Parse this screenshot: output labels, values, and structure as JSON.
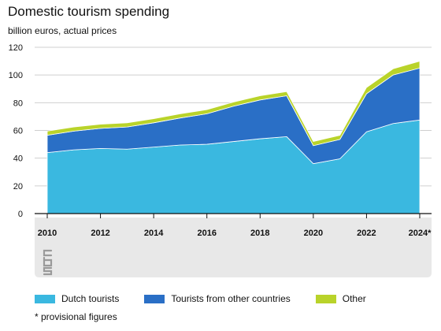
{
  "title": "Domestic tourism spending",
  "subtitle": "billion euros, actual prices",
  "footnote": "* provisional figures",
  "logo_text": "cbs",
  "colors": {
    "dutch": "#3ab8e0",
    "foreign": "#2a6fc6",
    "other": "#b9d32a",
    "footer_bg": "#e8e8e8",
    "grid": "#cfcfcf"
  },
  "chart_data": {
    "type": "area",
    "stacked": true,
    "title": "Domestic tourism spending",
    "ylabel": "billion euros, actual prices",
    "xlabel": "",
    "ylim": [
      0,
      120
    ],
    "yticks": [
      "0",
      "20",
      "40",
      "60",
      "80",
      "100",
      "120"
    ],
    "xtick_labels": [
      "2010",
      "2012",
      "2014",
      "2016",
      "2018",
      "2020",
      "2022",
      "2024*"
    ],
    "x": [
      "2010",
      "2011",
      "2012",
      "2013",
      "2014",
      "2015",
      "2016",
      "2017",
      "2018",
      "2019",
      "2020",
      "2021",
      "2022",
      "2023",
      "2024*"
    ],
    "grid": true,
    "legend": "bottom",
    "series": [
      {
        "name": "Dutch tourists",
        "values": [
          44,
          46,
          47,
          46.5,
          48,
          49.5,
          50,
          52,
          54,
          55.5,
          36,
          39.5,
          59,
          65,
          67.5
        ]
      },
      {
        "name": "Tourists from other countries",
        "values": [
          12.5,
          13.5,
          14.5,
          16,
          17.5,
          19.5,
          22,
          25.5,
          28,
          29.5,
          13,
          14,
          27.5,
          35,
          37.5
        ]
      },
      {
        "name": "Other",
        "values": [
          3,
          3,
          3,
          3,
          3,
          3,
          3,
          3,
          3,
          3,
          3,
          3,
          4.5,
          4.5,
          5
        ]
      }
    ]
  }
}
